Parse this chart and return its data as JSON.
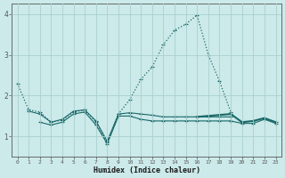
{
  "xlabel": "Humidex (Indice chaleur)",
  "x": [
    0,
    1,
    2,
    3,
    4,
    5,
    6,
    7,
    8,
    9,
    10,
    11,
    12,
    13,
    14,
    15,
    16,
    17,
    18,
    19,
    20,
    21,
    22,
    23
  ],
  "line1_y": [
    2.3,
    1.65,
    1.6,
    1.35,
    1.4,
    1.6,
    1.65,
    1.35,
    0.85,
    1.55,
    1.9,
    2.4,
    2.7,
    3.25,
    3.6,
    3.75,
    3.97,
    3.0,
    2.35,
    1.6,
    null,
    null,
    null,
    null
  ],
  "line2_y": [
    null,
    1.62,
    1.55,
    1.35,
    1.42,
    1.62,
    1.65,
    1.38,
    0.88,
    1.55,
    1.58,
    1.55,
    1.52,
    1.48,
    1.48,
    1.48,
    1.48,
    1.48,
    1.48,
    1.48,
    null,
    null,
    null,
    null
  ],
  "line3_y": [
    null,
    null,
    1.35,
    1.28,
    1.35,
    1.55,
    1.6,
    1.28,
    0.82,
    1.5,
    1.5,
    1.42,
    1.38,
    1.38,
    1.38,
    1.38,
    1.38,
    1.38,
    1.38,
    1.38,
    null,
    null,
    null,
    null
  ],
  "line4_y": [
    null,
    null,
    null,
    null,
    null,
    null,
    null,
    null,
    null,
    null,
    null,
    null,
    null,
    null,
    null,
    null,
    1.48,
    null,
    null,
    1.55,
    1.35,
    1.38,
    1.45,
    1.35
  ],
  "line5_y": [
    null,
    null,
    null,
    null,
    null,
    null,
    null,
    null,
    null,
    null,
    null,
    null,
    null,
    null,
    null,
    null,
    null,
    null,
    null,
    1.38,
    1.32,
    1.32,
    1.42,
    1.32
  ],
  "bg_color": "#cceaea",
  "grid_color": "#aacfcf",
  "line_color": "#1a6868",
  "ylim": [
    0.5,
    4.25
  ],
  "yticks": [
    1,
    2,
    3,
    4
  ],
  "xticks": [
    0,
    1,
    2,
    3,
    4,
    5,
    6,
    7,
    8,
    9,
    10,
    11,
    12,
    13,
    14,
    15,
    16,
    17,
    18,
    19,
    20,
    21,
    22,
    23
  ]
}
